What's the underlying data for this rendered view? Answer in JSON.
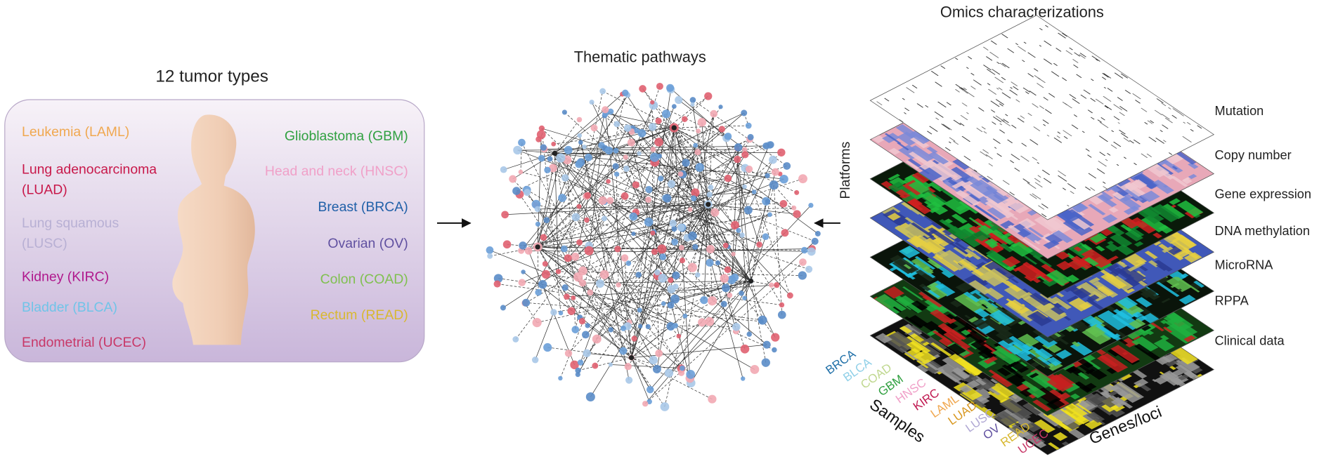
{
  "tumor_panel": {
    "title": "12 tumor types",
    "left_types": [
      {
        "lines": [
          "Leukemia (LAML)"
        ],
        "color": "#f0a850"
      },
      {
        "lines": [
          "Lung adenocarcinoma",
          "(LUAD)"
        ],
        "color": "#c8184a"
      },
      {
        "lines": [
          "Lung squamous",
          "(LUSC)"
        ],
        "color": "#b8b0d4"
      },
      {
        "lines": [
          "Kidney (KIRC)"
        ],
        "color": "#b0188c"
      },
      {
        "lines": [
          "Bladder (BLCA)"
        ],
        "color": "#70c4e8"
      },
      {
        "lines": [
          "Endometrial (UCEC)"
        ],
        "color": "#c83868"
      }
    ],
    "right_types": [
      {
        "lines": [
          "Glioblastoma (GBM)"
        ],
        "color": "#30a040"
      },
      {
        "lines": [
          "Head and neck (HNSC)"
        ],
        "color": "#f0a0c8"
      },
      {
        "lines": [
          "Breast (BRCA)"
        ],
        "color": "#2060a8"
      },
      {
        "lines": [
          "Ovarian (OV)"
        ],
        "color": "#6050a0"
      },
      {
        "lines": [
          "Colon (COAD)"
        ],
        "color": "#80c050"
      },
      {
        "lines": [
          "Rectum (READ)"
        ],
        "color": "#d8b830"
      }
    ]
  },
  "pathways": {
    "title": "Thematic pathways"
  },
  "omics": {
    "title": "Omics characterizations",
    "axis_label": "Platforms",
    "layers": [
      "Mutation",
      "Copy number",
      "Gene expression",
      "DNA methylation",
      "MicroRNA",
      "RPPA",
      "Clinical data"
    ],
    "samples_label": "Samples",
    "genes_label": "Genes/loci",
    "sample_types": [
      {
        "label": "BRCA",
        "color": "#2070a8"
      },
      {
        "label": "BLCA",
        "color": "#90d0e8"
      },
      {
        "label": "COAD",
        "color": "#c0d890"
      },
      {
        "label": "GBM",
        "color": "#30a040"
      },
      {
        "label": "HNSC",
        "color": "#f0a0c8"
      },
      {
        "label": "KIRC",
        "color": "#c01850"
      },
      {
        "label": "LAML",
        "color": "#f0a850"
      },
      {
        "label": "LUAD",
        "color": "#d89820"
      },
      {
        "label": "LUSC",
        "color": "#b0a8d4"
      },
      {
        "label": "OV",
        "color": "#6050a0"
      },
      {
        "label": "READ",
        "color": "#d8b830"
      },
      {
        "label": "UCEC",
        "color": "#c83868"
      }
    ]
  }
}
